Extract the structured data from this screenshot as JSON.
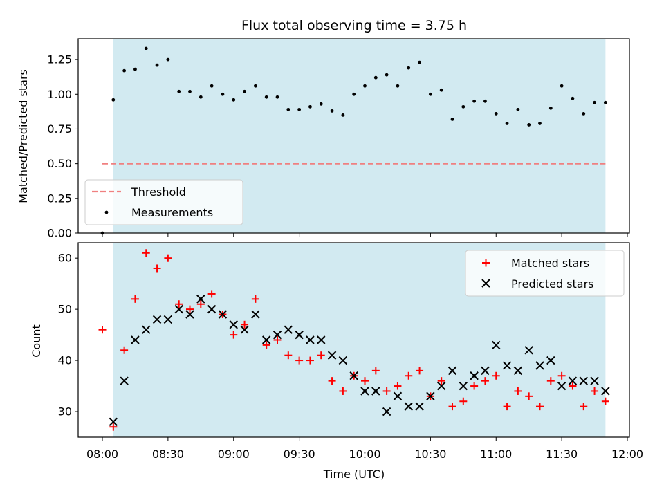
{
  "chart_data": [
    {
      "type": "scatter",
      "title": "Flux total observing time = 3.75 h",
      "xlabel": "",
      "ylabel": "Matched/Predicted stars",
      "ylim": [
        0,
        1.4
      ],
      "yticks": [
        "0.00",
        "0.25",
        "0.50",
        "0.75",
        "1.00",
        "1.25"
      ],
      "shaded_interval": [
        "08:05",
        "11:50"
      ],
      "shade_color": "#add8e6",
      "legend": {
        "placement": "lower-left",
        "entries": [
          "Threshold",
          "Measurements"
        ]
      },
      "series": [
        {
          "name": "Threshold",
          "kind": "dashed-line",
          "color": "#f08080",
          "x": [
            "08:00",
            "11:50"
          ],
          "y": [
            0.5,
            0.5
          ]
        },
        {
          "name": "Measurements",
          "kind": "dot",
          "color": "#000000",
          "x": [
            "08:00",
            "08:05",
            "08:10",
            "08:15",
            "08:20",
            "08:25",
            "08:30",
            "08:35",
            "08:40",
            "08:45",
            "08:50",
            "08:55",
            "09:00",
            "09:05",
            "09:10",
            "09:15",
            "09:20",
            "09:25",
            "09:30",
            "09:35",
            "09:40",
            "09:45",
            "09:50",
            "09:55",
            "10:00",
            "10:05",
            "10:10",
            "10:15",
            "10:20",
            "10:25",
            "10:30",
            "10:35",
            "10:40",
            "10:45",
            "10:50",
            "10:55",
            "11:00",
            "11:05",
            "11:10",
            "11:15",
            "11:20",
            "11:25",
            "11:30",
            "11:35",
            "11:40",
            "11:45",
            "11:50"
          ],
          "y": [
            0.0,
            0.96,
            1.17,
            1.18,
            1.33,
            1.21,
            1.25,
            1.02,
            1.02,
            0.98,
            1.06,
            1.0,
            0.96,
            1.02,
            1.06,
            0.98,
            0.98,
            0.89,
            0.89,
            0.91,
            0.93,
            0.88,
            0.85,
            1.0,
            1.06,
            1.12,
            1.14,
            1.06,
            1.19,
            1.23,
            1.0,
            1.03,
            0.82,
            0.91,
            0.95,
            0.95,
            0.86,
            0.79,
            0.89,
            0.78,
            0.79,
            0.9,
            1.06,
            0.97,
            0.86,
            0.94,
            0.94
          ]
        }
      ]
    },
    {
      "type": "scatter",
      "title": "",
      "xlabel": "Time (UTC)",
      "ylabel": "Count",
      "ylim": [
        25,
        63
      ],
      "yticks": [
        "30",
        "40",
        "50",
        "60"
      ],
      "xticks": [
        "08:00",
        "08:30",
        "09:00",
        "09:30",
        "10:00",
        "10:30",
        "11:00",
        "11:30",
        "12:00"
      ],
      "shaded_interval": [
        "08:05",
        "11:50"
      ],
      "shade_color": "#add8e6",
      "legend": {
        "placement": "top-right",
        "entries": [
          "Matched stars",
          "Predicted stars"
        ]
      },
      "series": [
        {
          "name": "Matched stars",
          "kind": "plus",
          "color": "#ff0000",
          "x": [
            "08:00",
            "08:05",
            "08:10",
            "08:15",
            "08:20",
            "08:25",
            "08:30",
            "08:35",
            "08:40",
            "08:45",
            "08:50",
            "08:55",
            "09:00",
            "09:05",
            "09:10",
            "09:15",
            "09:20",
            "09:25",
            "09:30",
            "09:35",
            "09:40",
            "09:45",
            "09:50",
            "09:55",
            "10:00",
            "10:05",
            "10:10",
            "10:15",
            "10:20",
            "10:25",
            "10:30",
            "10:35",
            "10:40",
            "10:45",
            "10:50",
            "10:55",
            "11:00",
            "11:05",
            "11:10",
            "11:15",
            "11:20",
            "11:25",
            "11:30",
            "11:35",
            "11:40",
            "11:45",
            "11:50"
          ],
          "y": [
            46,
            27,
            42,
            52,
            61,
            58,
            60,
            51,
            50,
            51,
            53,
            49,
            45,
            47,
            52,
            43,
            44,
            41,
            40,
            40,
            41,
            36,
            34,
            37,
            36,
            38,
            34,
            35,
            37,
            38,
            33,
            36,
            31,
            32,
            35,
            36,
            37,
            31,
            34,
            33,
            31,
            36,
            37,
            35,
            31,
            34,
            32
          ]
        },
        {
          "name": "Predicted stars",
          "kind": "x",
          "color": "#000000",
          "x": [
            "08:05",
            "08:10",
            "08:15",
            "08:20",
            "08:25",
            "08:30",
            "08:35",
            "08:40",
            "08:45",
            "08:50",
            "08:55",
            "09:00",
            "09:05",
            "09:10",
            "09:15",
            "09:20",
            "09:25",
            "09:30",
            "09:35",
            "09:40",
            "09:45",
            "09:50",
            "09:55",
            "10:00",
            "10:05",
            "10:10",
            "10:15",
            "10:20",
            "10:25",
            "10:30",
            "10:35",
            "10:40",
            "10:45",
            "10:50",
            "10:55",
            "11:00",
            "11:05",
            "11:10",
            "11:15",
            "11:20",
            "11:25",
            "11:30",
            "11:35",
            "11:40",
            "11:45",
            "11:50"
          ],
          "y": [
            28,
            36,
            44,
            46,
            48,
            48,
            50,
            49,
            52,
            50,
            49,
            47,
            46,
            49,
            44,
            45,
            46,
            45,
            44,
            44,
            41,
            40,
            37,
            34,
            34,
            30,
            33,
            31,
            31,
            33,
            35,
            38,
            35,
            37,
            38,
            43,
            39,
            38,
            42,
            39,
            40,
            35,
            36,
            36,
            36,
            34
          ]
        }
      ]
    }
  ]
}
